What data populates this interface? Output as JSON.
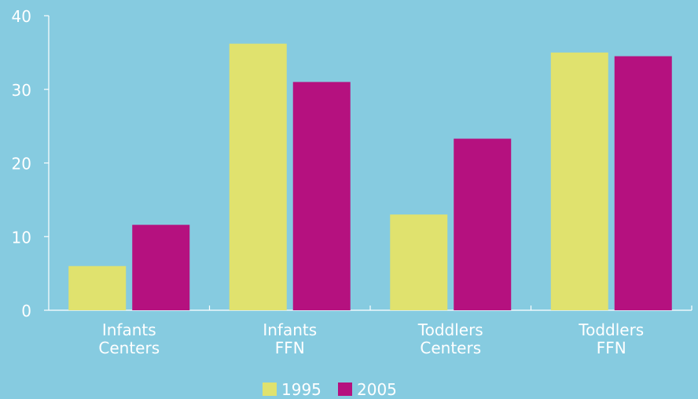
{
  "chart_data": {
    "type": "bar",
    "categories": [
      [
        "Infants",
        "Centers"
      ],
      [
        "Infants",
        "FFN"
      ],
      [
        "Toddlers",
        "Centers"
      ],
      [
        "Toddlers",
        "FFN"
      ]
    ],
    "series": [
      {
        "name": "1995",
        "color": "#e0e26e",
        "values": [
          6.0,
          36.2,
          13.0,
          35.0
        ]
      },
      {
        "name": "2005",
        "color": "#b5117f",
        "values": [
          11.6,
          31.0,
          23.3,
          34.5
        ]
      }
    ],
    "ylim": [
      0,
      40
    ],
    "yticks": [
      0,
      10,
      20,
      30,
      40
    ],
    "title": "",
    "xlabel": "",
    "ylabel": "",
    "legend_position": "bottom-center",
    "grid": false
  }
}
